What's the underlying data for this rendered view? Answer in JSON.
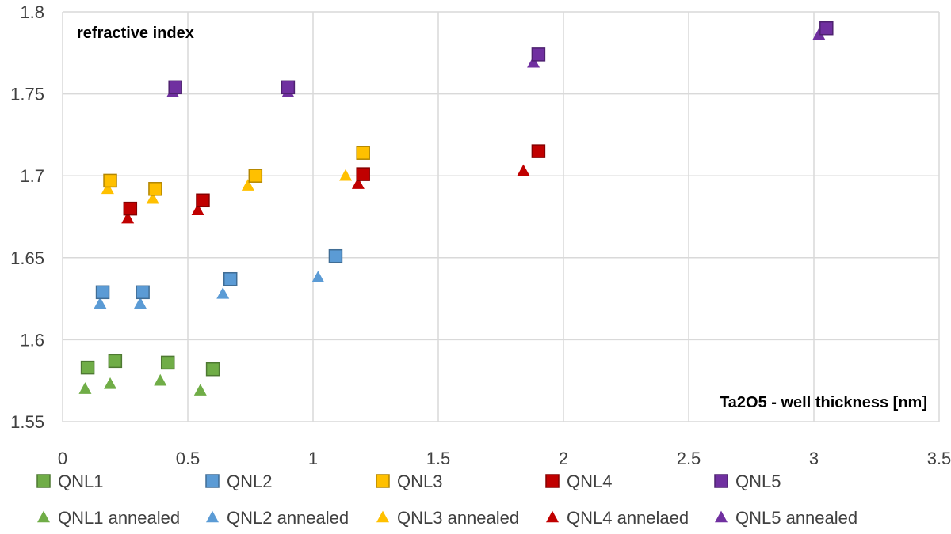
{
  "chart_data": {
    "type": "scatter",
    "title": "",
    "xlabel": "Ta2O5 - well thickness [nm]",
    "ylabel": "refractive index",
    "xlim": [
      0,
      3.5
    ],
    "ylim": [
      1.55,
      1.8
    ],
    "x_ticks": [
      "0",
      "0.5",
      "1",
      "1.5",
      "2",
      "2.5",
      "3",
      "3.5"
    ],
    "y_ticks": [
      "1.55",
      "1.6",
      "1.65",
      "1.7",
      "1.75",
      "1.8"
    ],
    "grid": true,
    "legend_position": "bottom",
    "series": [
      {
        "name": "QNL1",
        "marker": "square",
        "color": "#70ad47",
        "points": [
          [
            0.1,
            1.583
          ],
          [
            0.21,
            1.587
          ],
          [
            0.42,
            1.586
          ],
          [
            0.6,
            1.582
          ]
        ]
      },
      {
        "name": "QNL2",
        "marker": "square",
        "color": "#5b9bd5",
        "points": [
          [
            0.16,
            1.629
          ],
          [
            0.32,
            1.629
          ],
          [
            0.67,
            1.637
          ],
          [
            1.09,
            1.651
          ]
        ]
      },
      {
        "name": "QNL3",
        "marker": "square",
        "color": "#ffc000",
        "points": [
          [
            0.19,
            1.697
          ],
          [
            0.37,
            1.692
          ],
          [
            0.77,
            1.7
          ],
          [
            1.2,
            1.714
          ]
        ]
      },
      {
        "name": "QNL4",
        "marker": "square",
        "color": "#c00000",
        "points": [
          [
            0.27,
            1.68
          ],
          [
            0.56,
            1.685
          ],
          [
            1.2,
            1.701
          ],
          [
            1.9,
            1.715
          ]
        ]
      },
      {
        "name": "QNL5",
        "marker": "square",
        "color": "#7030a0",
        "points": [
          [
            0.45,
            1.754
          ],
          [
            0.9,
            1.754
          ],
          [
            1.9,
            1.774
          ],
          [
            3.05,
            1.79
          ]
        ]
      },
      {
        "name": "QNL1 annealed",
        "marker": "triangle",
        "color": "#70ad47",
        "points": [
          [
            0.09,
            1.57
          ],
          [
            0.19,
            1.573
          ],
          [
            0.39,
            1.575
          ],
          [
            0.55,
            1.569
          ]
        ]
      },
      {
        "name": "QNL2 annealed",
        "marker": "triangle",
        "color": "#5b9bd5",
        "points": [
          [
            0.15,
            1.622
          ],
          [
            0.31,
            1.622
          ],
          [
            0.64,
            1.628
          ],
          [
            1.02,
            1.638
          ]
        ]
      },
      {
        "name": "QNL3 annealed",
        "marker": "triangle",
        "color": "#ffc000",
        "points": [
          [
            0.18,
            1.692
          ],
          [
            0.36,
            1.686
          ],
          [
            0.74,
            1.694
          ],
          [
            1.13,
            1.7
          ]
        ]
      },
      {
        "name": "QNL4 annelaed",
        "marker": "triangle",
        "color": "#c00000",
        "points": [
          [
            0.26,
            1.674
          ],
          [
            0.54,
            1.679
          ],
          [
            1.18,
            1.695
          ],
          [
            1.84,
            1.703
          ]
        ]
      },
      {
        "name": "QNL5 annealed",
        "marker": "triangle",
        "color": "#7030a0",
        "points": [
          [
            0.44,
            1.751
          ],
          [
            0.9,
            1.751
          ],
          [
            1.88,
            1.769
          ],
          [
            3.02,
            1.786
          ]
        ]
      }
    ]
  }
}
